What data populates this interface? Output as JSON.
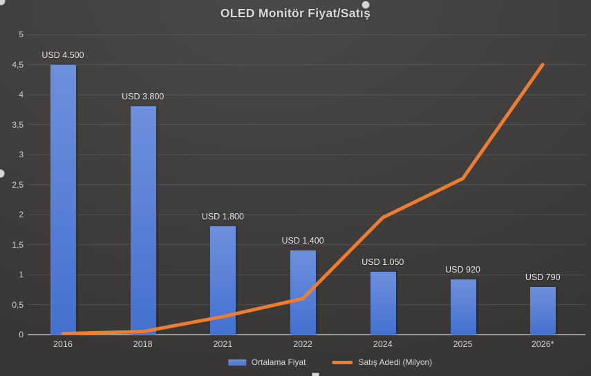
{
  "chart_data": {
    "type": "combo",
    "title": "OLED Monitör Fiyat/Satış",
    "categories": [
      "2016",
      "2018",
      "2021",
      "2022",
      "2024",
      "2025",
      "2026*"
    ],
    "series": [
      {
        "name": "Ortalama Fiyat",
        "type": "bar",
        "values": [
          4.5,
          3.8,
          1.8,
          1.4,
          1.05,
          0.92,
          0.79
        ],
        "point_labels": [
          "USD 4.500",
          "USD 3.800",
          "USD 1.800",
          "USD 1.400",
          "USD 1.050",
          "USD 920",
          "USD 790"
        ],
        "color": "#5b82d6"
      },
      {
        "name": "Satış Adedi (Milyon)",
        "type": "line",
        "values": [
          0.01,
          0.05,
          0.3,
          0.6,
          1.95,
          2.6,
          4.5
        ],
        "color": "#ed7d31"
      }
    ],
    "y_axis": {
      "min": 0,
      "max": 5,
      "step": 0.5,
      "tick_labels": [
        "0",
        "0,5",
        "1",
        "1,5",
        "2",
        "2,5",
        "3",
        "3,5",
        "4",
        "4,5",
        "5"
      ]
    },
    "x_axis_label": "",
    "grid": true,
    "legend_position": "bottom",
    "background_color": "#3e3c3b",
    "text_color": "#d9d9d9",
    "gridline_color": "#5c5b5a"
  }
}
